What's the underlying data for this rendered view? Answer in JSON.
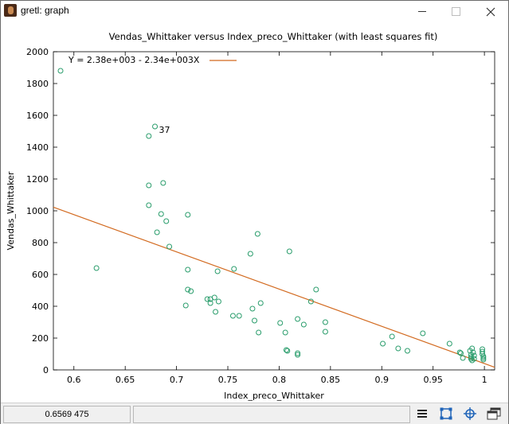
{
  "window": {
    "title": "gretl: graph",
    "icon": "gretl-app-icon"
  },
  "statusbar": {
    "coordinates": "0.6569 475",
    "tools": [
      "menu-icon",
      "zoom-icon",
      "crosshair-icon",
      "windows-icon"
    ]
  },
  "chart_data": {
    "type": "scatter",
    "title": "Vendas_Whittaker versus Index_preco_Whittaker (with least squares fit)",
    "xlabel": "Index_preco_Whittaker",
    "ylabel": "Vendas_Whittaker",
    "xlim": [
      0.58,
      1.01
    ],
    "ylim": [
      0,
      2000
    ],
    "xticks": [
      "0.6",
      "0.65",
      "0.7",
      "0.75",
      "0.8",
      "0.85",
      "0.9",
      "0.95",
      "1"
    ],
    "yticks": [
      "0",
      "200",
      "400",
      "600",
      "800",
      "1000",
      "1200",
      "1400",
      "1600",
      "1800",
      "2000"
    ],
    "grid": false,
    "legend_position": "top-left",
    "point_color": "#2a9d6c",
    "fit_color": "#d2691e",
    "fit": {
      "label": "Y = 2.38e+003 - 2.34e+003X",
      "intercept": 2380,
      "slope": -2340
    },
    "annotations": [
      {
        "text": "37",
        "x": 0.679,
        "y": 1530
      }
    ],
    "points": [
      [
        0.587,
        1880
      ],
      [
        0.679,
        1530
      ],
      [
        0.673,
        1470
      ],
      [
        0.673,
        1160
      ],
      [
        0.687,
        1175
      ],
      [
        0.673,
        1035
      ],
      [
        0.685,
        980
      ],
      [
        0.69,
        935
      ],
      [
        0.711,
        975
      ],
      [
        0.681,
        865
      ],
      [
        0.693,
        775
      ],
      [
        0.779,
        855
      ],
      [
        0.622,
        640
      ],
      [
        0.711,
        630
      ],
      [
        0.74,
        620
      ],
      [
        0.756,
        635
      ],
      [
        0.772,
        730
      ],
      [
        0.81,
        745
      ],
      [
        0.711,
        505
      ],
      [
        0.714,
        495
      ],
      [
        0.73,
        445
      ],
      [
        0.733,
        445
      ],
      [
        0.737,
        455
      ],
      [
        0.741,
        430
      ],
      [
        0.733,
        420
      ],
      [
        0.709,
        405
      ],
      [
        0.738,
        365
      ],
      [
        0.755,
        340
      ],
      [
        0.761,
        340
      ],
      [
        0.774,
        385
      ],
      [
        0.776,
        310
      ],
      [
        0.782,
        420
      ],
      [
        0.78,
        235
      ],
      [
        0.801,
        295
      ],
      [
        0.806,
        235
      ],
      [
        0.807,
        125
      ],
      [
        0.808,
        120
      ],
      [
        0.818,
        320
      ],
      [
        0.818,
        105
      ],
      [
        0.818,
        95
      ],
      [
        0.824,
        285
      ],
      [
        0.831,
        430
      ],
      [
        0.836,
        505
      ],
      [
        0.845,
        300
      ],
      [
        0.845,
        240
      ],
      [
        0.901,
        165
      ],
      [
        0.91,
        210
      ],
      [
        0.916,
        135
      ],
      [
        0.925,
        120
      ],
      [
        0.94,
        230
      ],
      [
        0.966,
        165
      ],
      [
        0.976,
        110
      ],
      [
        0.977,
        105
      ],
      [
        0.979,
        75
      ],
      [
        0.986,
        120
      ],
      [
        0.987,
        95
      ],
      [
        0.987,
        80
      ],
      [
        0.987,
        70
      ],
      [
        0.988,
        60
      ],
      [
        0.988,
        135
      ],
      [
        0.989,
        110
      ],
      [
        0.99,
        90
      ],
      [
        0.99,
        70
      ],
      [
        0.998,
        130
      ],
      [
        0.998,
        115
      ],
      [
        0.998,
        100
      ],
      [
        0.999,
        85
      ],
      [
        0.999,
        75
      ],
      [
        0.999,
        65
      ]
    ]
  }
}
